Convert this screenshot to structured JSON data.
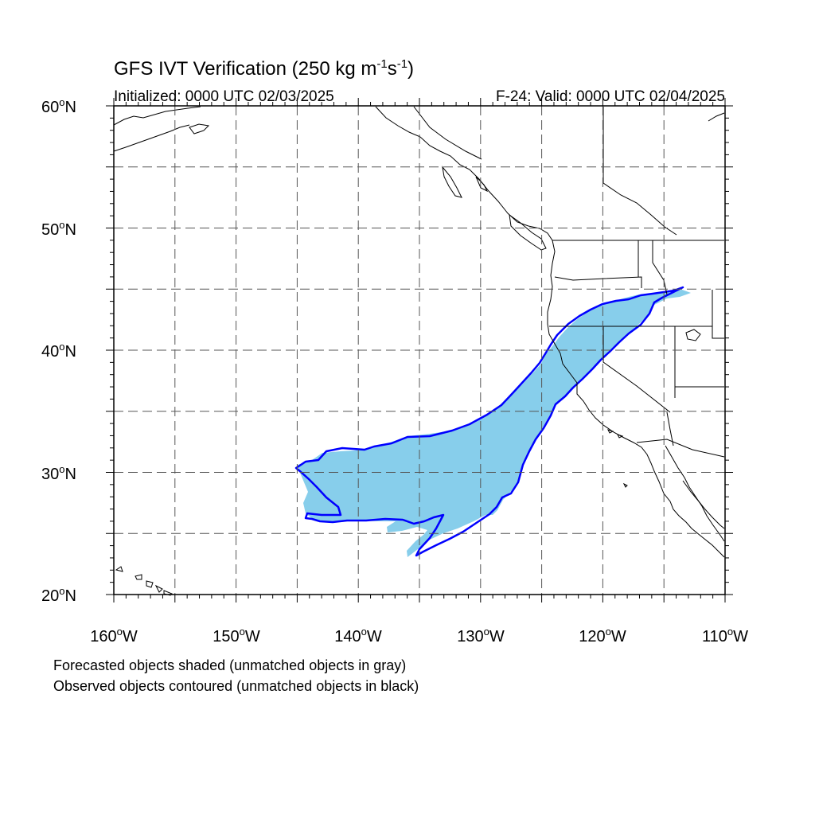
{
  "title": {
    "prefix": "GFS IVT Verification (250 kg m",
    "exp1": "-1",
    "mid": "s",
    "exp2": "-1",
    "suffix": ")"
  },
  "initialized": "Initialized: 0000 UTC 02/03/2025",
  "valid": "F-24: Valid: 0000 UTC 02/04/2025",
  "map": {
    "lon_range": [
      -160,
      -110
    ],
    "lat_range": [
      20,
      60
    ],
    "projection": "cylindrical equidistant",
    "gridlines": "dashed every 5 degrees",
    "lat_labels": [
      "20",
      "30",
      "40",
      "50",
      "60"
    ],
    "lat_suffix": "N",
    "lon_labels": [
      "160",
      "150",
      "140",
      "130",
      "120",
      "110"
    ],
    "lon_suffix": "W",
    "degree_symbol": "o"
  },
  "colors": {
    "forecast_fill": "#87ceeb",
    "observed_contour": "#0000ff",
    "coastline": "#000000",
    "grid": "#555555"
  },
  "notes": {
    "line1": "Forecasted objects shaded (unmatched objects in gray)",
    "line2": "Observed objects contoured (unmatched objects in black)"
  }
}
